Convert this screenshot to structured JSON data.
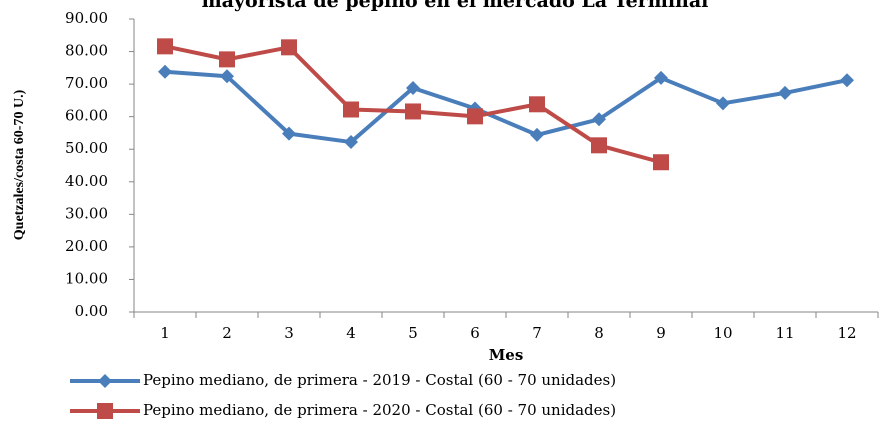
{
  "chart_data": {
    "type": "line",
    "title": "mayorista  de pepino en el mercado La Terminal",
    "x_label": "Mes",
    "y_label": "Quetzales/costa 60-70 U.)",
    "categories": [
      "1",
      "2",
      "3",
      "4",
      "5",
      "6",
      "7",
      "8",
      "9",
      "10",
      "11",
      "12"
    ],
    "series": [
      {
        "name": "Pepino mediano, de primera - 2019 - Costal (60 - 70 unidades)",
        "color": "#4a7ebb",
        "marker": "diamond",
        "values": [
          73.8,
          72.4,
          54.8,
          52.2,
          68.8,
          62.5,
          54.4,
          59.2,
          71.9,
          64.1,
          67.3,
          71.2
        ]
      },
      {
        "name": "Pepino mediano, de primera - 2020 - Costal (60 - 70 unidades)",
        "color": "#be4b48",
        "marker": "square",
        "values": [
          81.6,
          77.6,
          81.3,
          62.2,
          61.6,
          60.1,
          63.8,
          51.2,
          46.0,
          null,
          null,
          null
        ]
      }
    ],
    "ylim": [
      0,
      90
    ],
    "yticks": [
      {
        "value": 0,
        "label": "0.00"
      },
      {
        "value": 10,
        "label": "10.00"
      },
      {
        "value": 20,
        "label": "20.00"
      },
      {
        "value": 30,
        "label": "30.00"
      },
      {
        "value": 40,
        "label": "40.00"
      },
      {
        "value": 50,
        "label": "50.00"
      },
      {
        "value": 60,
        "label": "60.00"
      },
      {
        "value": 70,
        "label": "70.00"
      },
      {
        "value": 80,
        "label": "80.00"
      },
      {
        "value": 90,
        "label": "90.00"
      }
    ],
    "grid": false,
    "legend": "bottom"
  }
}
